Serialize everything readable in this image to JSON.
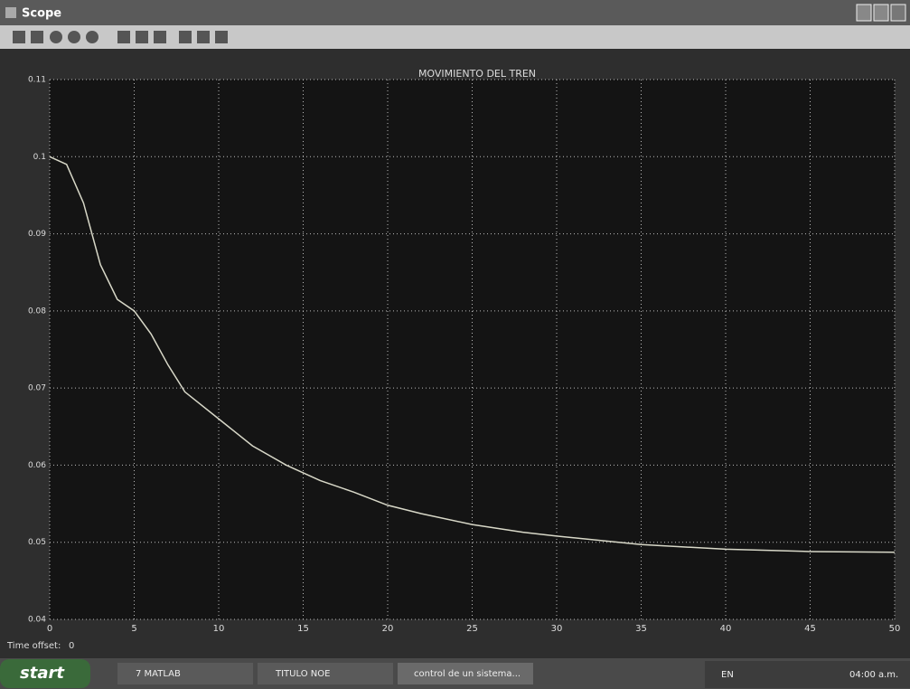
{
  "window": {
    "title": "Scope"
  },
  "chart_data": {
    "type": "line",
    "title": "MOVIMIENTO DEL TREN",
    "x": [
      0,
      1,
      2,
      3,
      4,
      5,
      6,
      7,
      8,
      10,
      12,
      14,
      16,
      18,
      20,
      22,
      25,
      28,
      30,
      35,
      40,
      45,
      50
    ],
    "values": [
      0.1,
      0.099,
      0.094,
      0.086,
      0.0815,
      0.08,
      0.077,
      0.073,
      0.0695,
      0.066,
      0.0625,
      0.06,
      0.058,
      0.0565,
      0.0548,
      0.0537,
      0.0523,
      0.0513,
      0.0508,
      0.0497,
      0.0491,
      0.0488,
      0.0487
    ],
    "color": "#d8d8c8",
    "xlim": [
      0,
      50
    ],
    "xticks": [
      0,
      5,
      10,
      15,
      20,
      25,
      30,
      35,
      40,
      45,
      50
    ],
    "ylim": [
      0.04,
      0.11
    ],
    "yticks": [
      0.04,
      0.05,
      0.06,
      0.07,
      0.08,
      0.09,
      0.1,
      0.11
    ],
    "grid": true
  },
  "status": {
    "label": "Time offset:",
    "value": "0"
  },
  "taskbar": {
    "start": "start",
    "items": [
      "7 MATLAB",
      "TITULO NOE",
      "control de un sistema..."
    ],
    "language": "EN",
    "clock": "04:00 a.m."
  }
}
